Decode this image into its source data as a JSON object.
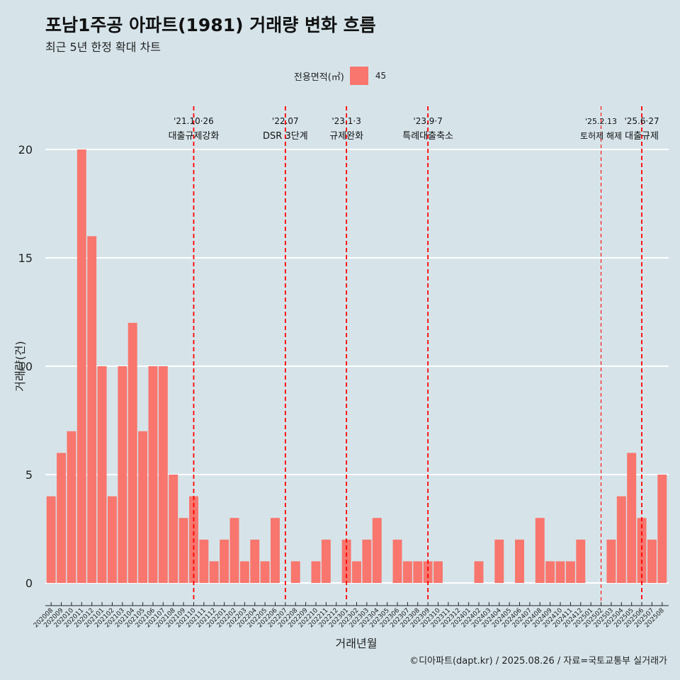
{
  "header": {
    "title": "포남1주공 아파트(1981) 거래량 변화 흐름",
    "subtitle": "최근 5년 한정 확대 차트"
  },
  "legend": {
    "title": "전용면적(㎡)",
    "label": "45"
  },
  "caption": "©디아파트(dapt.kr) / 2025.08.26 / 자료=국토교통부 실거래가",
  "colors": {
    "background": "#d6e4ea",
    "bar": "#f8766d",
    "gridline": "#ffffff",
    "event_line": "#ff0000"
  },
  "chart_data": {
    "type": "bar",
    "xlabel": "거래년월",
    "ylabel": "거래량(건)",
    "ylim": [
      0,
      20
    ],
    "yticks": [
      0,
      5,
      10,
      15,
      20
    ],
    "grid": "horizontal",
    "legend_position": "top",
    "categories": [
      "202008",
      "202009",
      "202010",
      "202011",
      "202012",
      "202101",
      "202102",
      "202103",
      "202104",
      "202105",
      "202106",
      "202107",
      "202108",
      "202109",
      "202110",
      "202111",
      "202112",
      "202201",
      "202202",
      "202203",
      "202204",
      "202205",
      "202206",
      "202207",
      "202208",
      "202209",
      "202210",
      "202211",
      "202212",
      "202301",
      "202302",
      "202303",
      "202304",
      "202305",
      "202306",
      "202307",
      "202308",
      "202309",
      "202310",
      "202311",
      "202312",
      "202401",
      "202402",
      "202403",
      "202404",
      "202405",
      "202406",
      "202407",
      "202408",
      "202409",
      "202410",
      "202411",
      "202412",
      "202501",
      "202502",
      "202503",
      "202504",
      "202505",
      "202506",
      "202507",
      "202508"
    ],
    "series": [
      {
        "name": "45",
        "values": [
          4,
          6,
          7,
          20,
          16,
          10,
          4,
          10,
          12,
          7,
          10,
          10,
          5,
          3,
          4,
          2,
          1,
          2,
          3,
          1,
          2,
          1,
          3,
          0,
          1,
          0,
          1,
          2,
          0,
          2,
          1,
          2,
          3,
          0,
          2,
          1,
          1,
          1,
          1,
          0,
          0,
          0,
          1,
          0,
          2,
          0,
          2,
          0,
          3,
          1,
          1,
          1,
          2,
          0,
          0,
          2,
          4,
          6,
          3,
          2,
          5
        ]
      }
    ],
    "events": [
      {
        "position": 14,
        "date": "'21.10·26",
        "label": "대출규제강화",
        "style": "thick"
      },
      {
        "position": 23,
        "date": "'22.07",
        "label": "DSR 3단계",
        "style": "thick"
      },
      {
        "position": 29,
        "date": "'23.1·3",
        "label": "규제완화",
        "style": "thick"
      },
      {
        "position": 37,
        "date": "'23.9·7",
        "label": "특례대출축소",
        "style": "thick"
      },
      {
        "position": 54,
        "date": "'25.2.13",
        "label": "토허제 해제",
        "style": "thin"
      },
      {
        "position": 58,
        "date": "'25.6·27",
        "label": "대출규제",
        "style": "thick"
      }
    ]
  }
}
